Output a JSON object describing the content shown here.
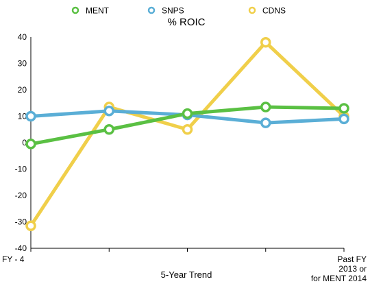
{
  "chart_data": {
    "type": "line",
    "title": "% ROIC",
    "xlabel": "5-Year Trend",
    "ylabel": "",
    "ylim": [
      -40,
      40
    ],
    "yticks": [
      40,
      30,
      20,
      10,
      0,
      -10,
      -20,
      -30,
      -40
    ],
    "categories": [
      "FY - 4",
      "",
      "",
      "",
      "Past FY 2013 or for MENT 2014"
    ],
    "category_label_lines": [
      [
        "FY - 4"
      ],
      [],
      [],
      [],
      [
        "Past FY",
        "2013 or",
        "for MENT 2014"
      ]
    ],
    "legend_position": "top",
    "grid": false,
    "series": [
      {
        "name": "MENT",
        "color": "#5ac043",
        "values": [
          -0.5,
          5,
          11,
          13.5,
          13
        ]
      },
      {
        "name": "SNPS",
        "color": "#5aaed6",
        "values": [
          10,
          12,
          10.5,
          7.5,
          9
        ]
      },
      {
        "name": "CDNS",
        "color": "#f0cf4a",
        "values": [
          -31.5,
          13.5,
          5,
          38,
          10
        ]
      }
    ]
  }
}
